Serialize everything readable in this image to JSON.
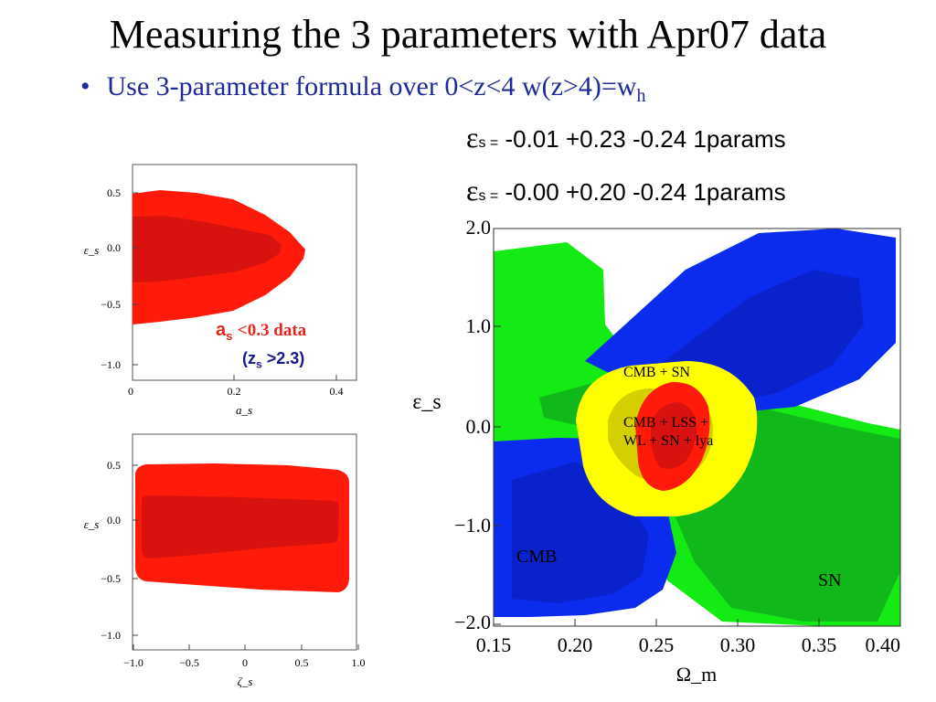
{
  "slide": {
    "title": "Measuring the 3 parameters with Apr07 data",
    "bullet_marker": "•",
    "bullet_text": "Use 3-parameter formula over 0<z<4  w(z>4)=w",
    "bullet_sub": "h",
    "eq1": {
      "symbol": "ε",
      "sub": "s =",
      "text": " -0.01 +0.23 -0.24  1params"
    },
    "eq2": {
      "symbol": "ε",
      "sub": "s =",
      "text": " -0.00 +0.20 -0.24  1params"
    },
    "note_as": {
      "label": "a",
      "sub": "s",
      "rest": "<0.3 data"
    },
    "note_zs": {
      "open": "(z",
      "sub": "s",
      "rest": ">2.3)"
    }
  },
  "chart_data": [
    {
      "type": "contour",
      "xlabel": "a_s",
      "ylabel": "ε_s",
      "xlim": [
        0,
        0.45
      ],
      "ylim": [
        -1.1,
        0.6
      ],
      "xticks": [
        "0",
        "0.2",
        "0.4"
      ],
      "yticks": [
        "0.5",
        "0.0",
        "−0.5",
        "−1.0"
      ],
      "colors": {
        "outer": "#ff1a0a",
        "inner": "#d8120e"
      }
    },
    {
      "type": "contour",
      "xlabel": "ζ_s",
      "ylabel": "ε_s",
      "xlim": [
        -1.0,
        1.0
      ],
      "ylim": [
        -1.1,
        0.6
      ],
      "xticks": [
        "−1.0",
        "−0.5",
        "0",
        "0.5",
        "1.0"
      ],
      "yticks": [
        "0.5",
        "0.0",
        "−0.5",
        "−1.0"
      ],
      "colors": {
        "outer": "#ff1a0a",
        "inner": "#d8120e"
      }
    },
    {
      "type": "contour",
      "xlabel": "Ω_m",
      "ylabel": "ε_s",
      "xlim": [
        0.15,
        0.4
      ],
      "ylim": [
        -2.0,
        2.0
      ],
      "xticks": [
        "0.15",
        "0.20",
        "0.25",
        "0.30",
        "0.35",
        "0.40"
      ],
      "yticks": [
        "2.0",
        "1.0",
        "0.0",
        "−1.0",
        "−2.0"
      ],
      "annotations": [
        "CMB + SN",
        "CMB + LSS +",
        "WL + SN + lya",
        "CMB",
        "SN"
      ],
      "colors": {
        "cmb": "#0b2bee",
        "sn": "#14ea14",
        "cmb_sn": "#ffff00",
        "combined": "#ff1a0a"
      }
    }
  ]
}
